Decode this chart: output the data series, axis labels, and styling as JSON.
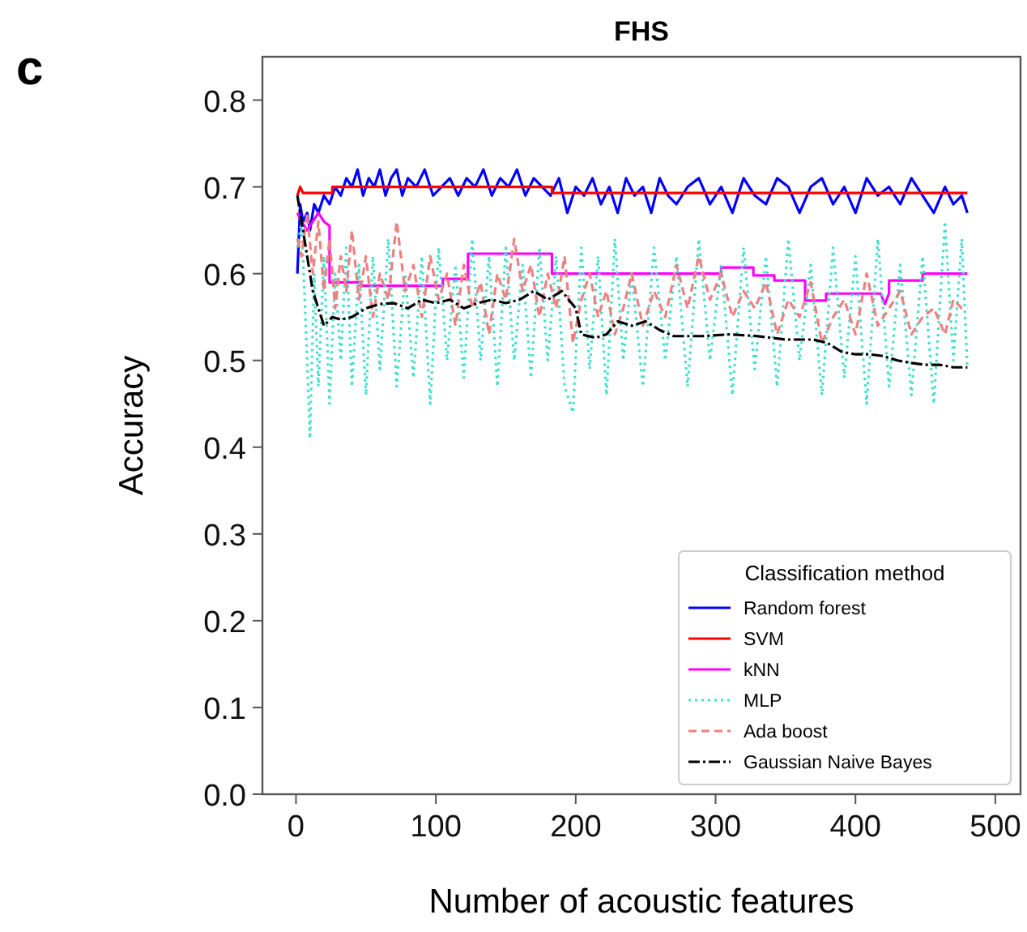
{
  "chart_data": {
    "type": "line",
    "title": "FHS",
    "xlabel": "Number of acoustic features",
    "ylabel": "Accuracy",
    "legend_title": "Classification method",
    "legend": "bottom right",
    "grid": false,
    "annotations": [
      "c"
    ],
    "xlim": [
      -24,
      518
    ],
    "ylim": [
      0,
      0.85
    ],
    "xticks": [
      0,
      100,
      200,
      300,
      400,
      500
    ],
    "yticks": [
      {
        "value": 0,
        "label": "0.0"
      },
      0.1,
      0.2,
      0.3,
      0.4,
      0.5,
      0.6,
      0.7,
      0.8
    ],
    "series": [
      {
        "name": "Random forest",
        "color": "#0000ff",
        "line_style": "solid",
        "x": [
          1,
          3,
          5,
          8,
          10,
          13,
          16,
          20,
          24,
          28,
          32,
          36,
          40,
          44,
          48,
          52,
          56,
          60,
          64,
          68,
          72,
          76,
          80,
          86,
          92,
          98,
          104,
          110,
          116,
          122,
          128,
          134,
          140,
          146,
          152,
          158,
          164,
          170,
          176,
          182,
          188,
          194,
          200,
          206,
          212,
          218,
          224,
          230,
          236,
          242,
          248,
          254,
          260,
          266,
          272,
          280,
          288,
          296,
          304,
          312,
          320,
          328,
          336,
          344,
          352,
          360,
          368,
          376,
          384,
          392,
          400,
          408,
          416,
          424,
          432,
          440,
          448,
          456,
          464,
          470,
          476,
          480
        ],
        "values": [
          0.6,
          0.68,
          0.66,
          0.67,
          0.65,
          0.68,
          0.67,
          0.69,
          0.68,
          0.7,
          0.69,
          0.71,
          0.7,
          0.72,
          0.69,
          0.71,
          0.7,
          0.72,
          0.69,
          0.71,
          0.72,
          0.69,
          0.71,
          0.7,
          0.72,
          0.69,
          0.7,
          0.71,
          0.69,
          0.71,
          0.7,
          0.72,
          0.69,
          0.71,
          0.7,
          0.72,
          0.69,
          0.71,
          0.7,
          0.69,
          0.71,
          0.67,
          0.7,
          0.69,
          0.71,
          0.68,
          0.7,
          0.67,
          0.71,
          0.69,
          0.7,
          0.67,
          0.71,
          0.69,
          0.68,
          0.7,
          0.71,
          0.68,
          0.7,
          0.67,
          0.71,
          0.69,
          0.68,
          0.71,
          0.7,
          0.67,
          0.7,
          0.71,
          0.68,
          0.7,
          0.67,
          0.71,
          0.69,
          0.7,
          0.68,
          0.71,
          0.69,
          0.67,
          0.7,
          0.68,
          0.69,
          0.67
        ]
      },
      {
        "name": "SVM",
        "color": "#ff0000",
        "line_style": "solid",
        "x": [
          1,
          3,
          5,
          7,
          26,
          26,
          183,
          183,
          480
        ],
        "values": [
          0.69,
          0.7,
          0.693,
          0.693,
          0.693,
          0.7,
          0.7,
          0.693,
          0.693
        ]
      },
      {
        "name": "kNN",
        "color": "#ff00ff",
        "line_style": "solid",
        "x": [
          1,
          4,
          8,
          12,
          16,
          20,
          24,
          24,
          46,
          46,
          105,
          105,
          123,
          123,
          183,
          183,
          304,
          304,
          327,
          327,
          342,
          342,
          364,
          364,
          379,
          379,
          418,
          421,
          424,
          424,
          448,
          448,
          480
        ],
        "values": [
          0.67,
          0.66,
          0.65,
          0.66,
          0.67,
          0.66,
          0.655,
          0.59,
          0.59,
          0.586,
          0.586,
          0.594,
          0.594,
          0.623,
          0.623,
          0.6,
          0.6,
          0.607,
          0.607,
          0.598,
          0.598,
          0.592,
          0.592,
          0.569,
          0.569,
          0.577,
          0.577,
          0.565,
          0.577,
          0.592,
          0.592,
          0.6,
          0.6
        ]
      },
      {
        "name": "MLP",
        "color": "#40e0d0",
        "line_style": "dotted",
        "x": [
          1,
          4,
          8,
          10,
          13,
          16,
          20,
          24,
          28,
          32,
          36,
          40,
          45,
          50,
          55,
          60,
          66,
          72,
          78,
          84,
          90,
          96,
          102,
          108,
          114,
          120,
          126,
          132,
          138,
          144,
          150,
          156,
          162,
          168,
          174,
          180,
          186,
          192,
          198,
          204,
          210,
          216,
          222,
          228,
          234,
          240,
          248,
          256,
          264,
          272,
          280,
          288,
          296,
          304,
          312,
          320,
          328,
          336,
          344,
          352,
          360,
          368,
          376,
          384,
          392,
          400,
          408,
          416,
          424,
          432,
          440,
          448,
          456,
          464,
          470,
          476,
          480
        ],
        "values": [
          0.63,
          0.66,
          0.5,
          0.41,
          0.6,
          0.47,
          0.62,
          0.45,
          0.6,
          0.5,
          0.63,
          0.47,
          0.61,
          0.46,
          0.62,
          0.49,
          0.64,
          0.47,
          0.6,
          0.48,
          0.62,
          0.45,
          0.63,
          0.5,
          0.61,
          0.48,
          0.64,
          0.5,
          0.62,
          0.47,
          0.63,
          0.5,
          0.61,
          0.48,
          0.63,
          0.5,
          0.62,
          0.47,
          0.44,
          0.63,
          0.49,
          0.62,
          0.46,
          0.64,
          0.5,
          0.6,
          0.47,
          0.63,
          0.5,
          0.62,
          0.47,
          0.64,
          0.5,
          0.61,
          0.46,
          0.63,
          0.49,
          0.62,
          0.47,
          0.64,
          0.5,
          0.61,
          0.46,
          0.63,
          0.48,
          0.62,
          0.45,
          0.64,
          0.47,
          0.61,
          0.46,
          0.62,
          0.45,
          0.66,
          0.5,
          0.64,
          0.49
        ]
      },
      {
        "name": "Ada boost",
        "color": "#f08080",
        "line_style": "dashed",
        "x": [
          1,
          4,
          8,
          12,
          16,
          20,
          24,
          28,
          32,
          36,
          40,
          45,
          50,
          55,
          60,
          66,
          72,
          78,
          84,
          90,
          96,
          102,
          108,
          114,
          120,
          126,
          132,
          138,
          144,
          150,
          156,
          162,
          168,
          174,
          180,
          186,
          192,
          198,
          204,
          210,
          216,
          222,
          228,
          234,
          240,
          248,
          256,
          264,
          272,
          280,
          288,
          296,
          304,
          312,
          320,
          328,
          336,
          344,
          352,
          360,
          368,
          376,
          384,
          392,
          400,
          408,
          416,
          424,
          432,
          440,
          448,
          456,
          464,
          470,
          476,
          480
        ],
        "values": [
          0.64,
          0.62,
          0.67,
          0.6,
          0.66,
          0.58,
          0.64,
          0.56,
          0.62,
          0.58,
          0.65,
          0.57,
          0.62,
          0.55,
          0.6,
          0.57,
          0.66,
          0.58,
          0.61,
          0.55,
          0.62,
          0.57,
          0.6,
          0.54,
          0.61,
          0.56,
          0.59,
          0.53,
          0.6,
          0.57,
          0.64,
          0.58,
          0.61,
          0.55,
          0.6,
          0.56,
          0.62,
          0.52,
          0.57,
          0.6,
          0.55,
          0.58,
          0.53,
          0.56,
          0.6,
          0.54,
          0.58,
          0.55,
          0.61,
          0.56,
          0.62,
          0.57,
          0.6,
          0.55,
          0.58,
          0.56,
          0.59,
          0.53,
          0.57,
          0.55,
          0.59,
          0.52,
          0.55,
          0.57,
          0.53,
          0.6,
          0.54,
          0.56,
          0.58,
          0.53,
          0.55,
          0.56,
          0.53,
          0.57,
          0.56,
          0.56
        ]
      },
      {
        "name": "Gaussian Naive Bayes",
        "color": "#000000",
        "line_style": "dashdot",
        "x": [
          1,
          4,
          8,
          12,
          16,
          20,
          26,
          32,
          40,
          50,
          60,
          70,
          80,
          90,
          100,
          110,
          120,
          130,
          140,
          150,
          160,
          170,
          180,
          190,
          200,
          204,
          214,
          222,
          230,
          240,
          250,
          260,
          270,
          290,
          310,
          330,
          350,
          370,
          380,
          390,
          400,
          410,
          420,
          430,
          440,
          450,
          460,
          470,
          480
        ],
        "values": [
          0.69,
          0.66,
          0.62,
          0.58,
          0.56,
          0.54,
          0.55,
          0.547,
          0.55,
          0.56,
          0.565,
          0.566,
          0.56,
          0.57,
          0.566,
          0.57,
          0.56,
          0.566,
          0.57,
          0.566,
          0.57,
          0.58,
          0.57,
          0.58,
          0.56,
          0.53,
          0.526,
          0.53,
          0.545,
          0.54,
          0.545,
          0.535,
          0.528,
          0.528,
          0.53,
          0.528,
          0.524,
          0.524,
          0.52,
          0.51,
          0.507,
          0.507,
          0.505,
          0.5,
          0.497,
          0.495,
          0.495,
          0.492,
          0.492
        ]
      }
    ]
  }
}
